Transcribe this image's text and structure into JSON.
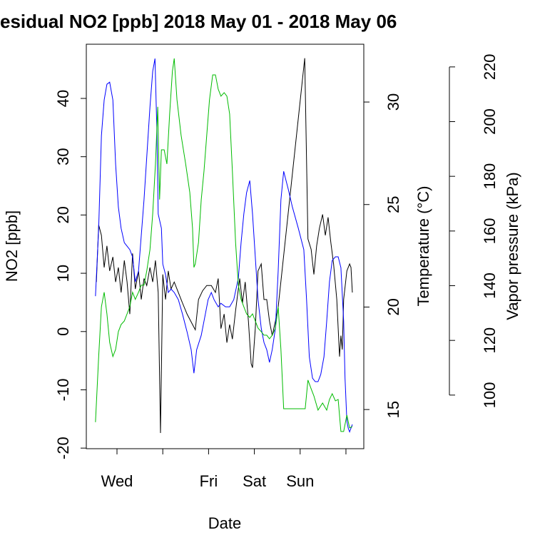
{
  "chart_data": {
    "type": "line",
    "title": "esidual NO2 [ppb] 2018 May 01 - 2018 May 06",
    "x_label": "Date",
    "y_label": "NO2 [ppb]",
    "y2_label": "Temperature (°C)",
    "y3_label": "Vapor pressure (kPa)",
    "xlim": [
      0.33,
      6.39
    ],
    "xticks": [
      {
        "value": 1,
        "label": "Wed"
      },
      {
        "value": 2,
        "label": null
      },
      {
        "value": 3,
        "label": "Fri"
      },
      {
        "value": 4,
        "label": "Sat"
      },
      {
        "value": 5,
        "label": "Sun"
      },
      {
        "value": 6,
        "label": null
      }
    ],
    "ylim": [
      -20.1,
      49.3
    ],
    "yticks": [
      -20,
      -10,
      0,
      10,
      20,
      30,
      40
    ],
    "y2lim": [
      13.09,
      32.82
    ],
    "y2ticks": [
      15,
      20,
      25,
      30
    ],
    "y2color": "#0000ff",
    "y3lim": [
      80.4,
      228.3
    ],
    "y3ticks": [
      100,
      120,
      140,
      160,
      180,
      200,
      220
    ],
    "y3color": "#00bb00",
    "series": [
      {
        "name": "NO2",
        "color": "#000000",
        "axis": "y",
        "x": [
          0.55,
          0.6,
          0.66,
          0.72,
          0.78,
          0.84,
          0.91,
          0.97,
          1.03,
          1.09,
          1.16,
          1.22,
          1.28,
          1.34,
          1.4,
          1.47,
          1.53,
          1.59,
          1.65,
          1.72,
          1.78,
          1.84,
          1.9,
          1.95,
          2.0,
          2.06,
          2.12,
          2.18,
          2.25,
          2.34,
          2.43,
          2.53,
          2.65,
          2.71,
          2.78,
          2.87,
          2.96,
          3.06,
          3.15,
          3.21,
          3.27,
          3.34,
          3.4,
          3.46,
          3.52,
          3.59,
          3.65,
          3.68,
          3.74,
          3.8,
          3.87,
          3.93,
          3.96,
          4.02,
          4.08,
          4.15,
          4.21,
          4.27,
          4.33,
          4.39,
          4.46,
          4.52,
          5.1,
          5.17,
          5.24,
          5.3,
          5.36,
          5.42,
          5.49,
          5.55,
          5.61,
          5.67,
          5.73,
          5.8,
          5.86,
          5.89,
          5.92,
          5.95,
          6.02,
          6.08,
          6.11,
          6.14
        ],
        "values": [
          8.5,
          18.3,
          16.5,
          11.0,
          14.7,
          10.4,
          12.8,
          8.5,
          11.0,
          6.7,
          12.2,
          8.5,
          3.0,
          13.4,
          7.3,
          10.4,
          5.5,
          9.1,
          7.9,
          11.0,
          8.5,
          12.2,
          6.7,
          -17.4,
          9.8,
          5.5,
          10.4,
          7.3,
          8.5,
          6.7,
          4.9,
          3.0,
          1.2,
          0.3,
          5.5,
          7.0,
          7.9,
          7.9,
          6.7,
          9.1,
          0.5,
          3.0,
          -1.9,
          1.2,
          -1.3,
          3.6,
          7.3,
          9.1,
          4.9,
          8.5,
          1.8,
          -5.5,
          -6.2,
          0.5,
          10.4,
          11.6,
          5.5,
          5.5,
          1.8,
          -0.7,
          1.8,
          4.2,
          46.9,
          15.9,
          14.1,
          9.8,
          14.7,
          17.7,
          20.1,
          16.5,
          19.6,
          15.3,
          11.6,
          5.5,
          -4.3,
          -0.7,
          -3.1,
          5.5,
          10.4,
          11.6,
          11.0,
          6.7
        ]
      },
      {
        "name": "Temperature",
        "color": "#0000ff",
        "axis": "y2",
        "x": [
          0.53,
          0.6,
          0.66,
          0.72,
          0.78,
          0.84,
          0.91,
          0.97,
          1.03,
          1.09,
          1.16,
          1.22,
          1.28,
          1.34,
          1.4,
          1.47,
          1.53,
          1.59,
          1.65,
          1.72,
          1.78,
          1.83,
          1.87,
          1.9,
          1.97,
          2.0,
          2.06,
          2.12,
          2.18,
          2.25,
          2.34,
          2.43,
          2.53,
          2.62,
          2.68,
          2.74,
          2.84,
          2.93,
          2.99,
          3.06,
          3.12,
          3.21,
          3.27,
          3.37,
          3.46,
          3.55,
          3.65,
          3.71,
          3.77,
          3.83,
          3.9,
          3.96,
          4.02,
          4.08,
          4.15,
          4.21,
          4.27,
          4.33,
          4.39,
          4.46,
          4.52,
          4.58,
          4.64,
          4.74,
          4.83,
          4.96,
          5.08,
          5.14,
          5.2,
          5.27,
          5.33,
          5.39,
          5.45,
          5.52,
          5.58,
          5.64,
          5.7,
          5.77,
          5.83,
          5.89,
          5.95,
          5.98,
          6.02,
          6.05,
          6.08,
          6.11,
          6.14
        ],
        "values": [
          20.53,
          23.84,
          28.36,
          30.1,
          30.87,
          30.97,
          30.1,
          26.97,
          24.88,
          23.84,
          23.14,
          22.97,
          22.8,
          22.45,
          21.23,
          21.75,
          23.49,
          25.23,
          27.32,
          29.76,
          31.5,
          32.12,
          28.71,
          24.54,
          23.84,
          22.1,
          21.58,
          20.71,
          20.88,
          20.71,
          20.36,
          19.66,
          18.79,
          17.92,
          16.77,
          17.92,
          18.62,
          19.66,
          20.36,
          20.71,
          20.36,
          20.01,
          20.18,
          20.01,
          20.01,
          20.36,
          21.4,
          23.14,
          24.54,
          25.58,
          26.17,
          24.54,
          22.45,
          20.36,
          18.97,
          18.27,
          17.92,
          17.3,
          17.92,
          18.97,
          21.75,
          25.23,
          26.62,
          25.75,
          24.88,
          23.84,
          22.8,
          20.36,
          17.57,
          16.53,
          16.36,
          16.36,
          16.71,
          17.57,
          19.31,
          21.23,
          22.27,
          22.45,
          22.45,
          21.92,
          19.31,
          16.53,
          14.44,
          14.09,
          13.91,
          14.09,
          14.27
        ]
      },
      {
        "name": "Vapor pressure",
        "color": "#00bb00",
        "axis": "y3",
        "x": [
          0.53,
          0.6,
          0.66,
          0.72,
          0.78,
          0.84,
          0.91,
          0.97,
          1.03,
          1.09,
          1.16,
          1.22,
          1.28,
          1.34,
          1.4,
          1.47,
          1.53,
          1.59,
          1.65,
          1.72,
          1.78,
          1.84,
          1.89,
          1.93,
          1.97,
          2.03,
          2.09,
          2.15,
          2.21,
          2.25,
          2.31,
          2.4,
          2.5,
          2.59,
          2.65,
          2.68,
          2.71,
          2.78,
          2.84,
          2.9,
          2.96,
          3.02,
          3.09,
          3.15,
          3.21,
          3.27,
          3.34,
          3.4,
          3.46,
          3.52,
          3.59,
          3.65,
          3.71,
          3.77,
          3.83,
          3.9,
          3.96,
          4.02,
          4.08,
          4.15,
          4.21,
          4.27,
          4.33,
          4.39,
          4.46,
          4.52,
          4.58,
          4.64,
          4.83,
          4.99,
          5.11,
          5.17,
          5.24,
          5.3,
          5.39,
          5.49,
          5.58,
          5.64,
          5.7,
          5.77,
          5.83,
          5.89,
          5.95,
          6.02,
          6.08,
          6.14
        ],
        "values": [
          90.1,
          114.1,
          132.3,
          137.6,
          129.7,
          119.3,
          114.1,
          116.7,
          123.2,
          125.8,
          127.1,
          129.7,
          132.3,
          137.6,
          135.0,
          137.6,
          140.2,
          140.2,
          145.4,
          153.2,
          166.3,
          184.5,
          205.4,
          171.5,
          189.7,
          189.7,
          184.5,
          202.8,
          218.4,
          223.1,
          208.0,
          195.0,
          184.5,
          174.1,
          161.0,
          146.7,
          148.0,
          155.8,
          171.5,
          181.9,
          195.0,
          208.0,
          217.1,
          217.1,
          211.9,
          209.3,
          210.6,
          209.3,
          202.8,
          181.9,
          155.8,
          140.2,
          135.0,
          132.3,
          129.7,
          128.4,
          129.7,
          127.1,
          124.5,
          123.2,
          121.9,
          121.9,
          120.6,
          121.9,
          124.5,
          132.3,
          116.7,
          95.0,
          95.0,
          95.0,
          95.0,
          105.5,
          102.3,
          99.7,
          94.5,
          97.1,
          94.5,
          98.4,
          100.5,
          97.9,
          98.4,
          86.7,
          86.7,
          92.7,
          88.0,
          88.5
        ]
      }
    ]
  }
}
